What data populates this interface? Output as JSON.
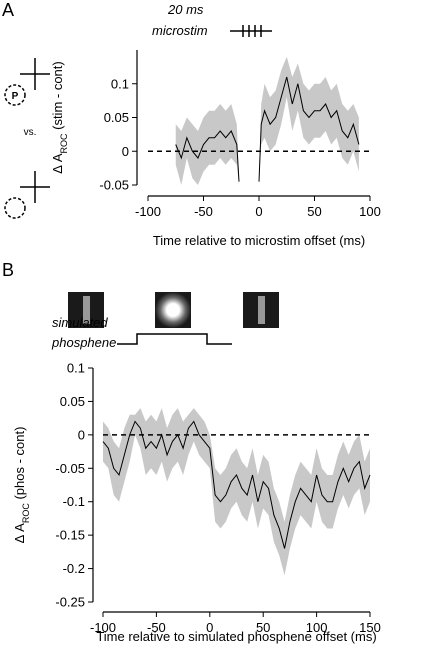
{
  "panel_a": {
    "label": "A",
    "stim_label": "20 ms",
    "stim_name": "microstim",
    "versus": "vs.",
    "target_letter": "P"
  },
  "panel_b": {
    "label": "B",
    "phosphene_label": [
      "simulated",
      "phosphene"
    ]
  },
  "chart_data": [
    {
      "type": "line",
      "ylabel": [
        "Δ A",
        "ROC",
        " (stim - cont)"
      ],
      "xlabel": "Time relative to microstim offset (ms)",
      "x": [
        -75,
        -70,
        -65,
        -60,
        -55,
        -50,
        -45,
        -40,
        -35,
        -30,
        -25,
        -20,
        -18,
        -10,
        0,
        2,
        5,
        10,
        15,
        20,
        25,
        30,
        35,
        40,
        45,
        50,
        55,
        60,
        65,
        70,
        75,
        80,
        85,
        90
      ],
      "values": [
        0.01,
        -0.01,
        0.02,
        0.0,
        -0.01,
        0.01,
        0.02,
        0.02,
        0.03,
        0.02,
        0.03,
        0.01,
        -0.045,
        null,
        -0.045,
        0.04,
        0.06,
        0.04,
        0.05,
        0.08,
        0.11,
        0.07,
        0.1,
        0.06,
        0.05,
        0.06,
        0.06,
        0.07,
        0.05,
        0.06,
        0.03,
        0.02,
        0.04,
        0.01
      ],
      "band_upper": [
        0.04,
        0.03,
        0.05,
        0.04,
        0.03,
        0.05,
        0.06,
        0.06,
        0.07,
        0.06,
        0.07,
        0.04,
        -0.04,
        null,
        -0.04,
        0.07,
        0.1,
        0.08,
        0.09,
        0.12,
        0.14,
        0.11,
        0.13,
        0.1,
        0.09,
        0.1,
        0.1,
        0.11,
        0.09,
        0.1,
        0.07,
        0.06,
        0.07,
        0.05
      ],
      "band_lower": [
        -0.02,
        -0.05,
        -0.01,
        -0.04,
        -0.05,
        -0.03,
        -0.02,
        -0.02,
        -0.01,
        -0.02,
        -0.01,
        -0.02,
        -0.05,
        null,
        -0.05,
        0.01,
        0.02,
        0.0,
        0.01,
        0.04,
        0.08,
        0.03,
        0.06,
        0.02,
        0.01,
        0.02,
        0.02,
        0.03,
        0.01,
        0.02,
        -0.01,
        -0.02,
        0.0,
        -0.03
      ],
      "color": "#000000",
      "band_color": "#c8c8c8",
      "ref_line": 0,
      "xlim": [
        -100,
        100
      ],
      "xticks": [
        -100,
        -50,
        0,
        50,
        100
      ],
      "ylim": [
        -0.05,
        0.15
      ],
      "yticks": [
        -0.05,
        0,
        0.05,
        0.1
      ]
    },
    {
      "type": "line",
      "ylabel": [
        "Δ A",
        "ROC",
        " (phos - cont)"
      ],
      "xlabel": "Time relative to simulated phosphene offset (ms)",
      "x": [
        -100,
        -95,
        -90,
        -85,
        -80,
        -75,
        -70,
        -65,
        -60,
        -55,
        -50,
        -45,
        -40,
        -35,
        -30,
        -25,
        -20,
        -15,
        -10,
        -5,
        0,
        5,
        10,
        15,
        20,
        25,
        30,
        35,
        40,
        45,
        50,
        55,
        60,
        65,
        70,
        75,
        80,
        85,
        90,
        95,
        100,
        105,
        110,
        115,
        120,
        125,
        130,
        135,
        140,
        145,
        150
      ],
      "values": [
        -0.01,
        -0.02,
        -0.05,
        -0.06,
        -0.03,
        0.0,
        0.02,
        0.01,
        -0.02,
        -0.01,
        -0.02,
        0.0,
        -0.03,
        -0.01,
        0.0,
        -0.02,
        0.01,
        0.02,
        0.0,
        -0.01,
        -0.02,
        -0.09,
        -0.1,
        -0.09,
        -0.07,
        -0.06,
        -0.08,
        -0.09,
        -0.06,
        -0.1,
        -0.07,
        -0.08,
        -0.12,
        -0.14,
        -0.17,
        -0.13,
        -0.1,
        -0.08,
        -0.09,
        -0.1,
        -0.06,
        -0.09,
        -0.1,
        -0.1,
        -0.07,
        -0.05,
        -0.07,
        -0.05,
        -0.04,
        -0.08,
        -0.06
      ],
      "band_upper": [
        0.02,
        0.01,
        -0.01,
        -0.02,
        0.01,
        0.03,
        0.03,
        0.04,
        0.02,
        0.03,
        0.02,
        0.04,
        0.01,
        0.03,
        0.04,
        0.02,
        0.03,
        0.04,
        0.03,
        0.02,
        0.0,
        -0.05,
        -0.06,
        -0.05,
        -0.03,
        -0.02,
        -0.04,
        -0.05,
        -0.02,
        -0.06,
        -0.03,
        -0.04,
        -0.08,
        -0.1,
        -0.13,
        -0.09,
        -0.06,
        -0.04,
        -0.05,
        -0.06,
        -0.02,
        -0.05,
        -0.06,
        -0.06,
        -0.03,
        -0.01,
        -0.03,
        -0.01,
        0.0,
        -0.04,
        -0.02
      ],
      "band_lower": [
        -0.04,
        -0.05,
        -0.09,
        -0.1,
        -0.07,
        -0.04,
        0.0,
        -0.02,
        -0.06,
        -0.05,
        -0.06,
        -0.04,
        -0.07,
        -0.05,
        -0.04,
        -0.06,
        -0.03,
        -0.01,
        -0.03,
        -0.04,
        -0.05,
        -0.13,
        -0.14,
        -0.13,
        -0.11,
        -0.1,
        -0.12,
        -0.13,
        -0.1,
        -0.14,
        -0.11,
        -0.12,
        -0.16,
        -0.18,
        -0.21,
        -0.17,
        -0.14,
        -0.12,
        -0.13,
        -0.14,
        -0.1,
        -0.13,
        -0.14,
        -0.14,
        -0.11,
        -0.09,
        -0.11,
        -0.09,
        -0.08,
        -0.12,
        -0.1
      ],
      "color": "#000000",
      "band_color": "#c8c8c8",
      "ref_line": 0,
      "xlim": [
        -100,
        150
      ],
      "xticks": [
        -100,
        -50,
        0,
        50,
        100,
        150
      ],
      "ylim": [
        -0.25,
        0.1
      ],
      "yticks": [
        -0.25,
        -0.2,
        -0.15,
        -0.1,
        -0.05,
        0,
        0.05,
        0.1
      ]
    }
  ]
}
